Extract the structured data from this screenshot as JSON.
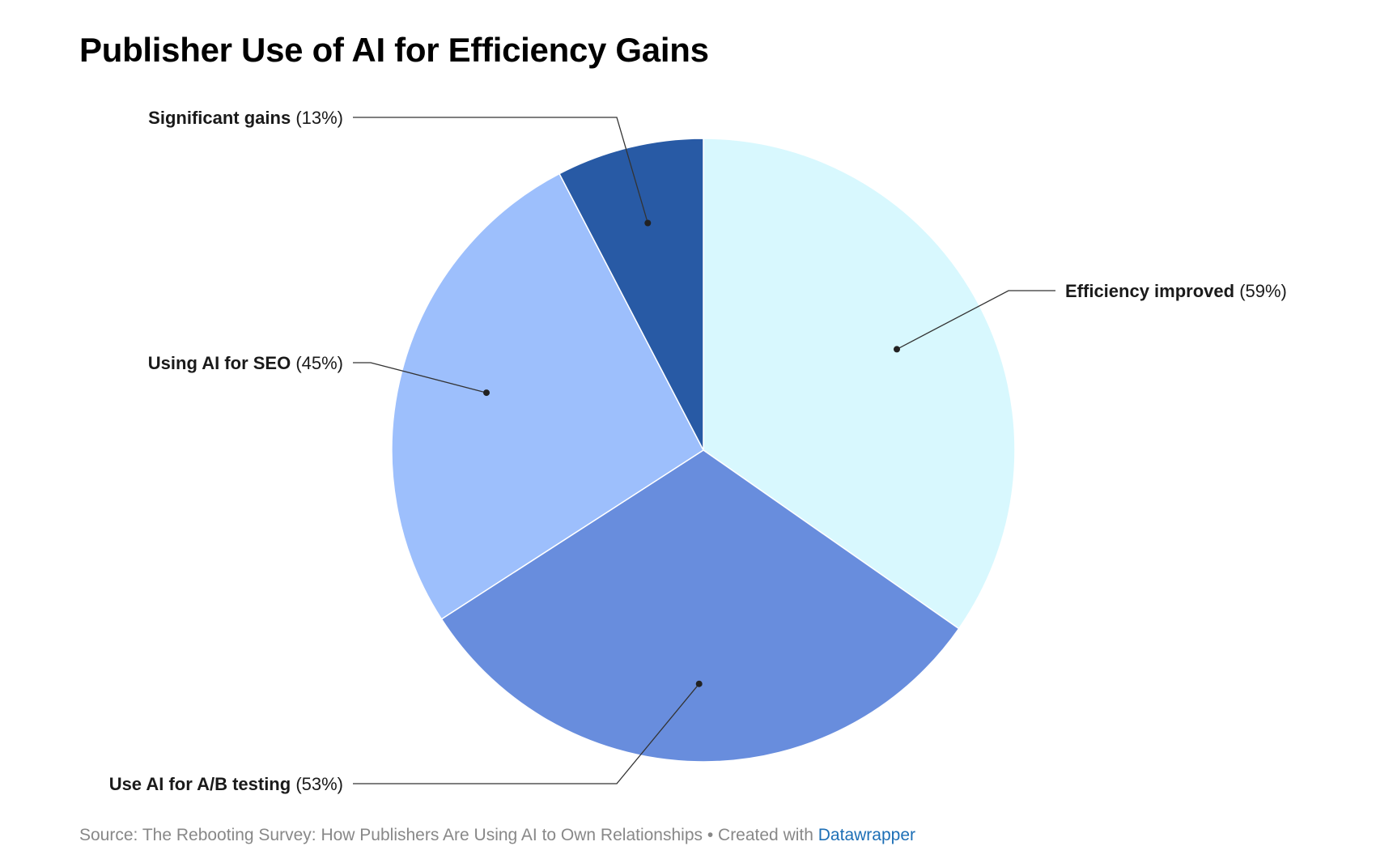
{
  "chart_data": {
    "type": "pie",
    "title": "Publisher Use of AI for Efficiency Gains",
    "slices": [
      {
        "label": "Efficiency improved",
        "value_label": "(59%)",
        "value": 59,
        "color": "#d8f8fe"
      },
      {
        "label": "Use AI for A/B testing",
        "value_label": "(53%)",
        "value": 53,
        "color": "#688ddd"
      },
      {
        "label": "Using AI for SEO",
        "value_label": "(45%)",
        "value": 45,
        "color": "#9dbffc"
      },
      {
        "label": "Significant gains",
        "value_label": "(13%)",
        "value": 13,
        "color": "#285aa5"
      }
    ],
    "start_angle_deg": 0,
    "direction": "clockwise"
  },
  "footer": {
    "source_text": "Source: The Rebooting Survey: How Publishers Are Using AI to Own Relationships • Created with ",
    "link_text": "Datawrapper"
  }
}
